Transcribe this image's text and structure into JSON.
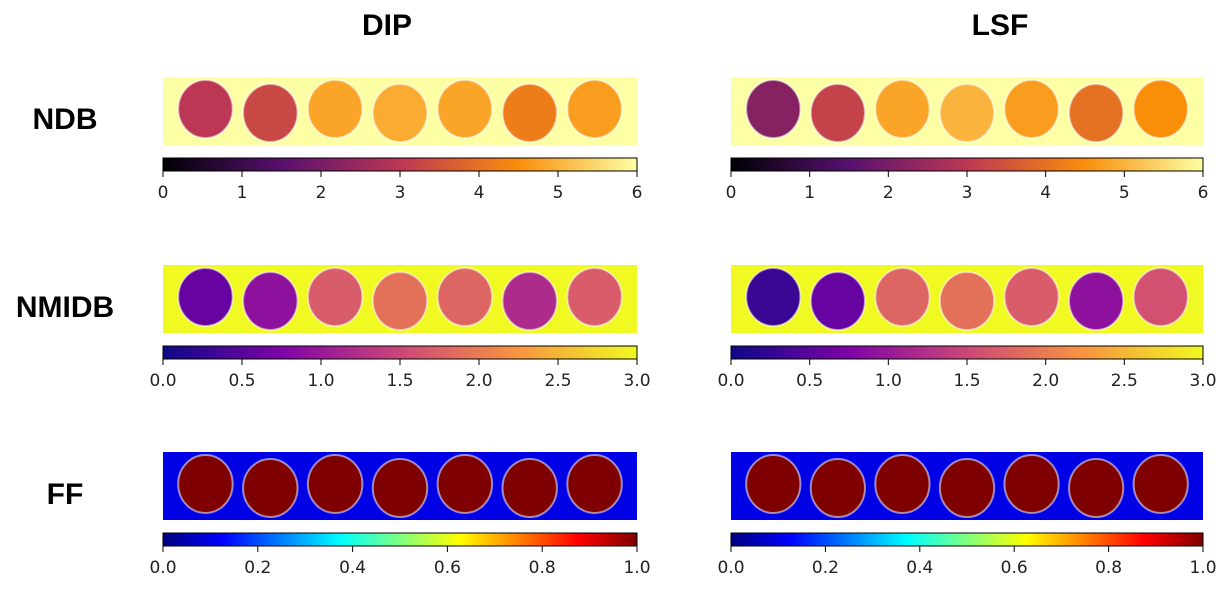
{
  "columns": [
    "DIP",
    "LSF"
  ],
  "rows": [
    {
      "label": "NDB",
      "colormap": "inferno",
      "lim": [
        0,
        6
      ],
      "ticks": [
        0,
        1,
        2,
        3,
        4,
        5,
        6
      ],
      "panels": [
        {
          "background": 6,
          "vials": [
            3.0,
            3.3,
            4.8,
            4.9,
            4.8,
            4.2,
            4.7
          ]
        },
        {
          "background": 6,
          "vials": [
            2.2,
            3.2,
            4.8,
            5.0,
            4.7,
            4.0,
            4.5
          ]
        }
      ]
    },
    {
      "label": "NMIDB",
      "colormap": "plasma",
      "lim": [
        0,
        3
      ],
      "ticks": [
        {
          "value": 0,
          "label": "0.0"
        },
        0.5,
        {
          "value": 1,
          "label": "1.0"
        },
        1.5,
        {
          "value": 2,
          "label": "2.0"
        },
        2.5,
        {
          "value": 3,
          "label": "3.0"
        }
      ],
      "panels": [
        {
          "background": 3,
          "vials": [
            0.6,
            0.9,
            1.7,
            1.9,
            1.8,
            1.2,
            1.7
          ]
        },
        {
          "background": 3,
          "vials": [
            0.3,
            0.6,
            1.8,
            1.9,
            1.7,
            0.9,
            1.6
          ]
        }
      ]
    },
    {
      "label": "FF",
      "colormap": "jet",
      "lim": [
        0,
        1
      ],
      "ticks": [
        {
          "value": 0,
          "label": "0.0"
        },
        0.2,
        0.4,
        0.6,
        0.8,
        {
          "value": 1,
          "label": "1.0"
        }
      ],
      "panels": [
        {
          "background": 0.1,
          "vials": [
            1,
            1,
            1,
            1,
            1,
            1,
            1
          ]
        },
        {
          "background": 0.1,
          "vials": [
            1,
            1,
            1,
            1,
            1,
            1,
            1
          ]
        }
      ]
    }
  ]
}
